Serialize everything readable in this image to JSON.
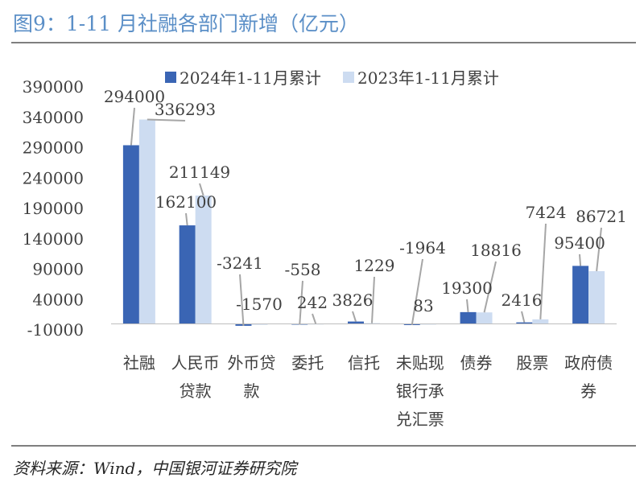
{
  "figure": {
    "title": "图9：1-11 月社融各部门新增（亿元）",
    "source": "资料来源：Wind，中国银河证券研究院"
  },
  "colors": {
    "series_2024": "#3a65b4",
    "series_2023": "#cddcf1",
    "title": "#5b8fc7",
    "leader": "#a6a6a6",
    "axis": "#bfbfbf"
  },
  "chart_data": {
    "type": "bar",
    "title": "",
    "xlabel": "",
    "ylabel": "",
    "ylim": [
      -10000,
      390000
    ],
    "yticks": [
      -10000,
      40000,
      90000,
      140000,
      190000,
      240000,
      290000,
      340000,
      390000
    ],
    "grid": false,
    "legend_position": "top",
    "categories": [
      "社融",
      "人民币贷款",
      "外币贷款",
      "委托",
      "信托",
      "未贴现银行承兑汇票",
      "债券",
      "股票",
      "政府债券"
    ],
    "category_label_lines": [
      [
        "社融"
      ],
      [
        "人民币",
        "贷款"
      ],
      [
        "外币贷",
        "款"
      ],
      [
        "委托"
      ],
      [
        "信托"
      ],
      [
        "未贴现",
        "银行承",
        "兑汇票"
      ],
      [
        "债券"
      ],
      [
        "股票"
      ],
      [
        "政府债",
        "券"
      ]
    ],
    "series": [
      {
        "name": "2024年1-11月累计",
        "values": [
          294000,
          162100,
          -3241,
          -558,
          3826,
          -1964,
          19300,
          2416,
          95400
        ]
      },
      {
        "name": "2023年1-11月累计",
        "values": [
          336293,
          211149,
          -1570,
          242,
          1229,
          83,
          18816,
          7424,
          86721
        ]
      }
    ]
  }
}
